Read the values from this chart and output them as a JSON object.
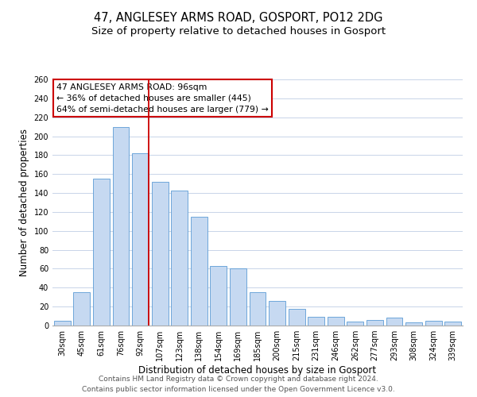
{
  "title": "47, ANGLESEY ARMS ROAD, GOSPORT, PO12 2DG",
  "subtitle": "Size of property relative to detached houses in Gosport",
  "xlabel": "Distribution of detached houses by size in Gosport",
  "ylabel": "Number of detached properties",
  "bar_labels": [
    "30sqm",
    "45sqm",
    "61sqm",
    "76sqm",
    "92sqm",
    "107sqm",
    "123sqm",
    "138sqm",
    "154sqm",
    "169sqm",
    "185sqm",
    "200sqm",
    "215sqm",
    "231sqm",
    "246sqm",
    "262sqm",
    "277sqm",
    "293sqm",
    "308sqm",
    "324sqm",
    "339sqm"
  ],
  "bar_values": [
    5,
    35,
    155,
    210,
    182,
    152,
    143,
    115,
    63,
    60,
    35,
    26,
    18,
    9,
    9,
    4,
    6,
    8,
    3,
    5,
    4
  ],
  "bar_color": "#c6d9f1",
  "bar_edge_color": "#5b9bd5",
  "vline_color": "#cc0000",
  "vline_index": 4,
  "annotation_title": "47 ANGLESEY ARMS ROAD: 96sqm",
  "annotation_line1": "← 36% of detached houses are smaller (445)",
  "annotation_line2": "64% of semi-detached houses are larger (779) →",
  "annotation_box_color": "#ffffff",
  "annotation_box_edge": "#cc0000",
  "ylim": [
    0,
    260
  ],
  "yticks": [
    0,
    20,
    40,
    60,
    80,
    100,
    120,
    140,
    160,
    180,
    200,
    220,
    240,
    260
  ],
  "footer1": "Contains HM Land Registry data © Crown copyright and database right 2024.",
  "footer2": "Contains public sector information licensed under the Open Government Licence v3.0.",
  "bg_color": "#ffffff",
  "grid_color": "#c8d4e8",
  "title_fontsize": 10.5,
  "subtitle_fontsize": 9.5,
  "axis_label_fontsize": 8.5,
  "tick_fontsize": 7,
  "annotation_fontsize": 7.8,
  "footer_fontsize": 6.5
}
